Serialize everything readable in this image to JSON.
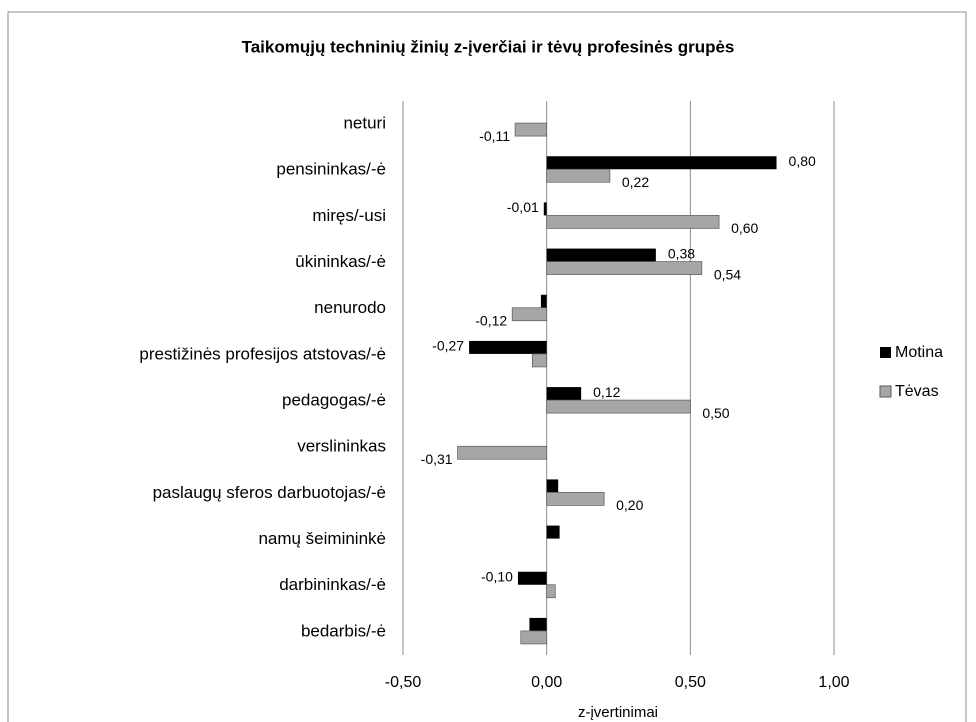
{
  "chart_data": {
    "type": "barh",
    "title": "Taikomųjų techninių žinių z-įverčiai ir tėvų profesinės grupės",
    "x_label": "z-įvertinimai",
    "categories": [
      "neturi",
      "pensininkas/-ė",
      "miręs/-usi",
      "ūkininkas/-ė",
      "nenurodo",
      "prestižinės profesijos atstovas/-ė",
      "pedagogas/-ė",
      "verslininkas",
      "paslaugų sferos darbuotojas/-ė",
      "namų šeimininkė",
      "darbininkas/-ė",
      "bedarbis/-ė"
    ],
    "series": [
      {
        "name": "Motina",
        "color": "#000000",
        "values": [
          null,
          0.8,
          -0.01,
          0.38,
          -0.02,
          -0.27,
          0.12,
          null,
          0.04,
          0.045,
          -0.1,
          -0.06
        ],
        "value_labels": [
          null,
          "0,80",
          "-0,01",
          "0,38",
          null,
          "-0,27",
          "0,12",
          null,
          null,
          null,
          "-0,10",
          null
        ]
      },
      {
        "name": "Tėvas",
        "color": "#a6a6a6",
        "values": [
          -0.11,
          0.22,
          0.6,
          0.54,
          -0.12,
          -0.05,
          0.5,
          -0.31,
          0.2,
          null,
          0.03,
          -0.09
        ],
        "value_labels": [
          "-0,11",
          "0,22",
          "0,60",
          "0,54",
          "-0,12",
          null,
          "0,50",
          "-0,31",
          "0,20",
          null,
          null,
          null
        ]
      }
    ],
    "xlim": [
      -0.5,
      1.0
    ],
    "xticks": [
      {
        "value": -0.5,
        "label": "-0,50"
      },
      {
        "value": 0,
        "label": "0,00"
      },
      {
        "value": 0.5,
        "label": "0,50"
      },
      {
        "value": 1.0,
        "label": "1,00"
      }
    ],
    "grid": true,
    "legend": "right"
  }
}
